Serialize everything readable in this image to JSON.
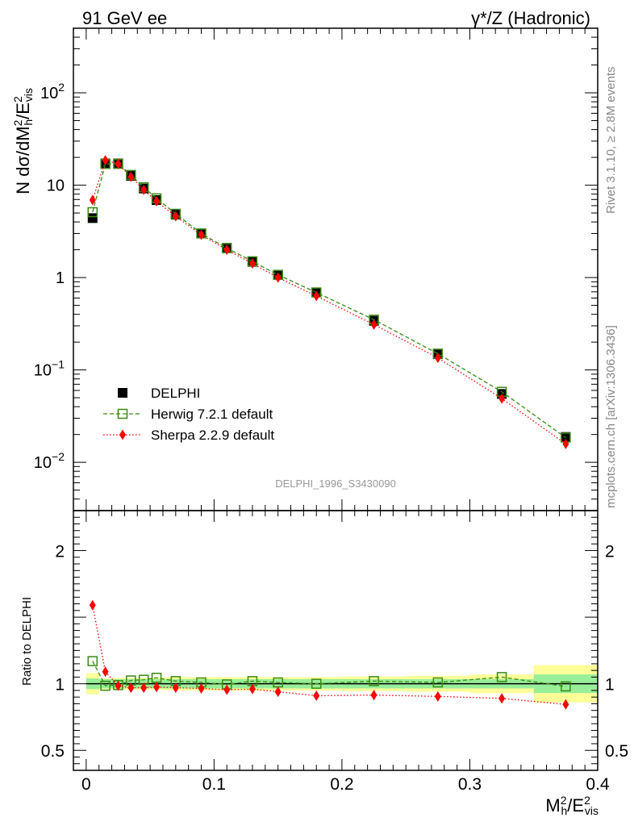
{
  "header": {
    "left": "91 GeV ee",
    "right": "γ*/Z (Hadronic)"
  },
  "side_text": {
    "rivet": "Rivet 3.1.10, ≥ 2.8M events",
    "site": "mcplots.cern.ch [arXiv:1306.3436]"
  },
  "analysis_label": "DELPHI_1996_S3430090",
  "colors": {
    "data": "#000000",
    "herwig": "#3a8a10",
    "sherpa": "#ff0000",
    "band_inner": "#99ee99",
    "band_outer": "#ffff99"
  },
  "chart_data": [
    {
      "type": "line",
      "panel": "main",
      "yscale": "log",
      "xlim": [
        -0.01,
        0.4
      ],
      "ylim": [
        0.003,
        500
      ],
      "ylabel": "N dσ/dM_h^2/E_vis^2",
      "y_tick_labels": [
        "10^-2",
        "10^-1",
        "1",
        "10",
        "10^2"
      ],
      "legend_position": "lower-left",
      "series": [
        {
          "name": "DELPHI",
          "marker": "filled-square",
          "x": [
            0.005,
            0.015,
            0.025,
            0.035,
            0.045,
            0.055,
            0.07,
            0.09,
            0.11,
            0.13,
            0.15,
            0.18,
            0.225,
            0.275,
            0.325,
            0.375
          ],
          "y": [
            4.4,
            17.2,
            17.2,
            12.6,
            9.2,
            6.9,
            4.8,
            3.0,
            2.1,
            1.48,
            1.07,
            0.69,
            0.34,
            0.148,
            0.055,
            0.0188
          ]
        },
        {
          "name": "Herwig 7.2.1 default",
          "marker": "open-square",
          "x": [
            0.005,
            0.015,
            0.025,
            0.035,
            0.045,
            0.055,
            0.07,
            0.09,
            0.11,
            0.13,
            0.15,
            0.18,
            0.225,
            0.275,
            0.325,
            0.375
          ],
          "y": [
            5.1,
            17.0,
            17.0,
            12.9,
            9.5,
            7.2,
            4.9,
            3.0,
            2.08,
            1.5,
            1.07,
            0.69,
            0.35,
            0.15,
            0.058,
            0.0185
          ]
        },
        {
          "name": "Sherpa 2.2.9 default",
          "marker": "diamond",
          "x": [
            0.005,
            0.015,
            0.025,
            0.035,
            0.045,
            0.055,
            0.07,
            0.09,
            0.11,
            0.13,
            0.15,
            0.18,
            0.225,
            0.275,
            0.325,
            0.375
          ],
          "y": [
            6.9,
            18.6,
            17.0,
            12.3,
            8.9,
            6.7,
            4.6,
            2.9,
            2.0,
            1.42,
            1.0,
            0.63,
            0.31,
            0.135,
            0.049,
            0.0158
          ]
        }
      ]
    },
    {
      "type": "line",
      "panel": "ratio",
      "xlim": [
        -0.01,
        0.4
      ],
      "ylim": [
        0.35,
        2.3
      ],
      "ylabel": "Ratio to DELPHI",
      "xlabel": "M_h^2/E_vis^2",
      "x_tick_labels": [
        "0",
        "0.1",
        "0.2",
        "0.3",
        "0.4"
      ],
      "y_tick_labels": [
        "0.5",
        "1",
        "2"
      ],
      "bands": {
        "edges": [
          0.0,
          0.01,
          0.02,
          0.03,
          0.04,
          0.05,
          0.06,
          0.08,
          0.1,
          0.12,
          0.14,
          0.16,
          0.2,
          0.25,
          0.3,
          0.35,
          0.4
        ],
        "inner": [
          0.04,
          0.035,
          0.035,
          0.035,
          0.035,
          0.035,
          0.035,
          0.035,
          0.035,
          0.035,
          0.035,
          0.035,
          0.035,
          0.035,
          0.035,
          0.07
        ],
        "outer": [
          0.08,
          0.04,
          0.045,
          0.045,
          0.045,
          0.045,
          0.05,
          0.05,
          0.05,
          0.05,
          0.05,
          0.05,
          0.055,
          0.06,
          0.07,
          0.14
        ]
      },
      "series": [
        {
          "name": "Herwig 7.2.1 default",
          "marker": "open-square",
          "x": [
            0.005,
            0.015,
            0.025,
            0.035,
            0.045,
            0.055,
            0.07,
            0.09,
            0.11,
            0.13,
            0.15,
            0.18,
            0.225,
            0.275,
            0.325,
            0.375
          ],
          "y": [
            1.17,
            0.985,
            0.99,
            1.025,
            1.03,
            1.045,
            1.02,
            1.01,
            0.995,
            1.02,
            1.01,
            1.0,
            1.02,
            1.01,
            1.05,
            0.98
          ]
        },
        {
          "name": "Sherpa 2.2.9 default",
          "marker": "diamond",
          "x": [
            0.005,
            0.015,
            0.025,
            0.035,
            0.045,
            0.055,
            0.07,
            0.09,
            0.11,
            0.13,
            0.15,
            0.18,
            0.225,
            0.275,
            0.325,
            0.375
          ],
          "y": [
            1.59,
            1.09,
            0.985,
            0.97,
            0.97,
            0.975,
            0.97,
            0.965,
            0.955,
            0.96,
            0.94,
            0.91,
            0.915,
            0.905,
            0.89,
            0.845
          ]
        }
      ]
    }
  ]
}
